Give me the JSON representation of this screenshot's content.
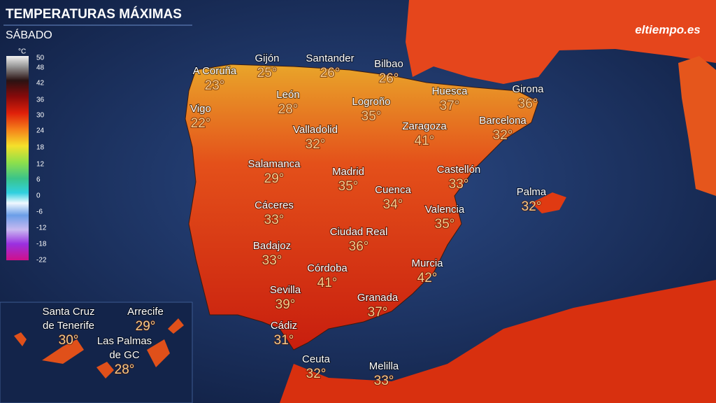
{
  "header": {
    "title": "TEMPERATURAS MÁXIMAS",
    "subtitle": "SÁBADO",
    "logo": "eltiempo.es"
  },
  "legend": {
    "unit": "°C",
    "ticks": [
      50,
      48,
      42,
      36,
      30,
      24,
      18,
      12,
      6,
      0,
      -6,
      -12,
      -18,
      -22
    ]
  },
  "cities": [
    {
      "name": [
        "A Coruña"
      ],
      "temp": "23°"
    },
    {
      "name": [
        "Gijón"
      ],
      "temp": "25°"
    },
    {
      "name": [
        "Santander"
      ],
      "temp": "26°"
    },
    {
      "name": [
        "Bilbao"
      ],
      "temp": "26°"
    },
    {
      "name": [
        "Vigo"
      ],
      "temp": "22°"
    },
    {
      "name": [
        "León"
      ],
      "temp": "28°"
    },
    {
      "name": [
        "Logroño"
      ],
      "temp": "35°"
    },
    {
      "name": [
        "Huesca"
      ],
      "temp": "37°"
    },
    {
      "name": [
        "Girona"
      ],
      "temp": "36°"
    },
    {
      "name": [
        "Zaragoza"
      ],
      "temp": "41°"
    },
    {
      "name": [
        "Barcelona"
      ],
      "temp": "32°"
    },
    {
      "name": [
        "Valladolid"
      ],
      "temp": "32°"
    },
    {
      "name": [
        "Salamanca"
      ],
      "temp": "29°"
    },
    {
      "name": [
        "Madrid"
      ],
      "temp": "35°"
    },
    {
      "name": [
        "Castellón"
      ],
      "temp": "33°"
    },
    {
      "name": [
        "Cuenca"
      ],
      "temp": "34°"
    },
    {
      "name": [
        "Palma"
      ],
      "temp": "32°"
    },
    {
      "name": [
        "Cáceres"
      ],
      "temp": "33°"
    },
    {
      "name": [
        "Valencia"
      ],
      "temp": "35°"
    },
    {
      "name": [
        "Ciudad Real"
      ],
      "temp": "36°"
    },
    {
      "name": [
        "Badajoz"
      ],
      "temp": "33°"
    },
    {
      "name": [
        "Córdoba"
      ],
      "temp": "41°"
    },
    {
      "name": [
        "Murcia"
      ],
      "temp": "42°"
    },
    {
      "name": [
        "Sevilla"
      ],
      "temp": "39°"
    },
    {
      "name": [
        "Granada"
      ],
      "temp": "37°"
    },
    {
      "name": [
        "Cádiz"
      ],
      "temp": "31°"
    },
    {
      "name": [
        "Ceuta"
      ],
      "temp": "32°"
    },
    {
      "name": [
        "Melilla"
      ],
      "temp": "33°"
    },
    {
      "name": [
        "Santa Cruz",
        "de Tenerife"
      ],
      "temp": "30°"
    },
    {
      "name": [
        "Arrecife"
      ],
      "temp": "29°"
    },
    {
      "name": [
        "Las Palmas",
        "de GC"
      ],
      "temp": "28°"
    }
  ]
}
